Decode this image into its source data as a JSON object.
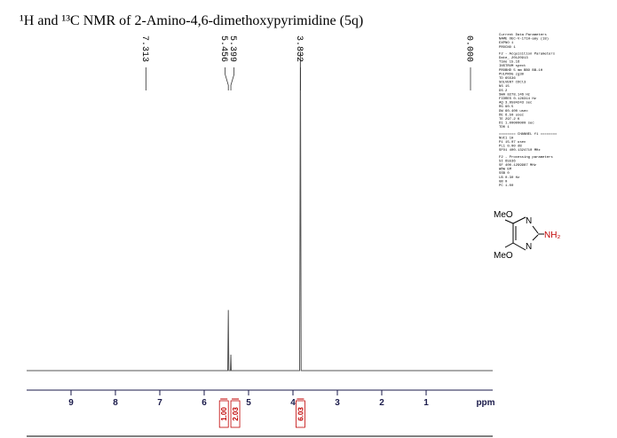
{
  "chart_data": {
    "type": "line",
    "title": "¹H and ¹³C NMR of 2-Amino-4,6-dimethoxypyrimidine (5q)",
    "x_label": "ppm",
    "x": [
      10,
      5.47,
      5.456,
      5.445,
      5.41,
      5.399,
      5.39,
      3.85,
      3.832,
      3.815,
      -0.5
    ],
    "values": [
      0,
      0,
      19,
      0,
      0,
      5,
      0,
      0,
      100,
      0,
      0
    ],
    "color": "#555555",
    "xlim": [
      10,
      -0.5
    ],
    "ylim": [
      0,
      100
    ],
    "xticks": [
      9,
      8,
      7,
      6,
      5,
      4,
      3,
      2,
      1
    ],
    "peak_labels": [
      7.313,
      5.456,
      5.399,
      3.832,
      {
        "value": 0,
        "label": "0.000"
      }
    ],
    "integrals": [
      {
        "ppm": 5.456,
        "value": 1,
        "label": "1.00"
      },
      {
        "ppm": 5.399,
        "value": 2.03
      },
      {
        "ppm": 3.832,
        "value": 6.03
      }
    ],
    "structure": {
      "labels": [
        "MeO",
        "N",
        "NH₂",
        "N",
        "MeO"
      ]
    },
    "parameters": [
      "Current Data Parameters",
      "NAME   OEC-V-171H-amy (18)",
      "EXPNO              1",
      "PROCNO             1",
      "F2 - Acquisition Parameters",
      "Date_        20120913",
      "Time            15.16",
      "INSTRUM         spect",
      "PROBHD   5 mm BBO BB-1H",
      "PULPROG          zg30",
      "TD              65536",
      "SOLVENT         CDCl3",
      "NS                 15",
      "DS                  2",
      "SWH       8278.146 Hz",
      "FIDRES    0.126314 Hz",
      "AQ       3.9584243 sec",
      "RG               90.5",
      "DW         60.400 usec",
      "DE           6.50 usec",
      "TE            297.2 K",
      "D1      1.00000000 sec",
      "TD0                 1",
      "======== CHANNEL f1 ========",
      "NUC1               1H",
      "P1          15.07 usec",
      "PL1           0.00 dB",
      "SFO1   400.1324710 MHz",
      "F2 - Processing parameters",
      "SI              65536",
      "SF     400.1299987 MHz",
      "WDW                EM",
      "SSB                 0",
      "LB            0.30 Hz",
      "GB                  0",
      "PC               1.00"
    ]
  }
}
